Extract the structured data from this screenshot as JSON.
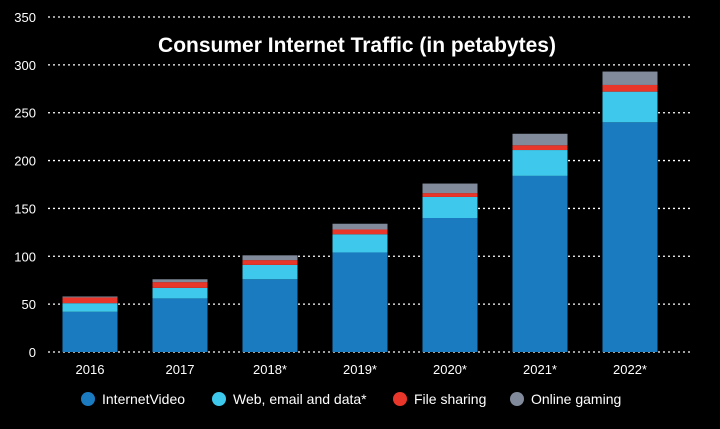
{
  "chart_data": {
    "type": "bar",
    "stacked": true,
    "title": "Consumer Internet Traffic (in petabytes)",
    "xlabel": "",
    "ylabel": "",
    "ylim": [
      0,
      350
    ],
    "yticks": [
      0,
      50,
      100,
      150,
      200,
      250,
      300,
      350
    ],
    "grid": true,
    "legend_position": "bottom",
    "categories": [
      "2016",
      "2017",
      "2018*",
      "2019*",
      "2020*",
      "2021*",
      "2022*"
    ],
    "series": [
      {
        "name": "InternetVideo",
        "color": "#1b7bc1",
        "values": [
          42,
          56,
          76,
          104,
          140,
          184,
          240
        ]
      },
      {
        "name": "Web, email and data*",
        "color": "#3ec8ec",
        "values": [
          9,
          11,
          15,
          19,
          22,
          27,
          32
        ]
      },
      {
        "name": "File sharing",
        "color": "#e8372a",
        "values": [
          6,
          6,
          5,
          5,
          4,
          5,
          7
        ]
      },
      {
        "name": "Online gaming",
        "color": "#808a9a",
        "values": [
          1,
          3,
          5,
          6,
          10,
          12,
          14
        ]
      }
    ]
  }
}
